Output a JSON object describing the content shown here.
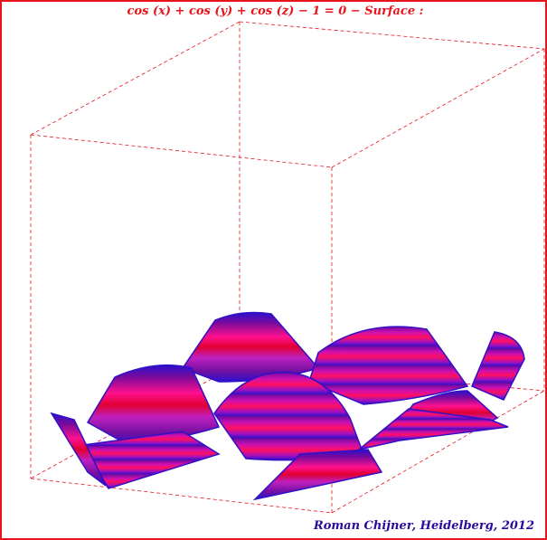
{
  "chart_data": {
    "type": "surface",
    "title": "cos (x) + cos (y) + cos (z) − 1 = 0 − Surface :",
    "equation": "cos(x) + cos(y) + cos(z) - 1 = 0",
    "bounding_box": "dashed",
    "colors": {
      "box": "#e8141c",
      "surface": [
        "#2a10d0",
        "#7a0a9a",
        "#ff1090",
        "#e00030",
        "#c020c0"
      ]
    },
    "credit": "Roman Chijner, Heidelberg, 2012"
  }
}
